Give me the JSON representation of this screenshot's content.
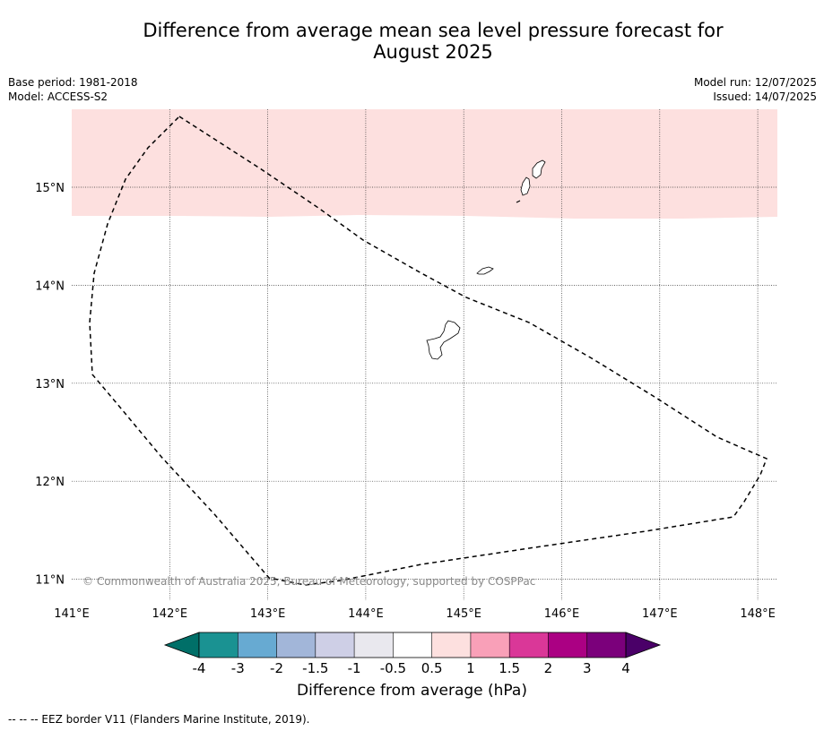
{
  "title_line1": "Difference from average mean sea level pressure forecast for",
  "title_line2": "August 2025",
  "meta_left": {
    "base_period": "Base period: 1981-2018",
    "model": "Model: ACCESS-S2"
  },
  "meta_right": {
    "model_run": "Model run: 12/07/2025",
    "issued": "Issued: 14/07/2025"
  },
  "copyright": "© Commonwealth of Australia 2025, Bureau of Meteorology, supported by COSPPac",
  "footer": "--  --  -- EEZ border V11 (Flanders Marine Institute, 2019).",
  "map": {
    "lon_ticks": [
      "141°E",
      "142°E",
      "143°E",
      "144°E",
      "145°E",
      "146°E",
      "147°E",
      "148°E"
    ],
    "lat_ticks": [
      "15°N",
      "14°N",
      "13°N",
      "12°N",
      "11°N"
    ],
    "lon_range": [
      141.0,
      148.2
    ],
    "lat_range": [
      10.75,
      15.8
    ],
    "anomaly_band": {
      "category": "0.5 to 1",
      "lat_min": 14.7,
      "color": "#fde0df"
    }
  },
  "colorbar": {
    "title": "Difference from average (hPa)",
    "tick_labels": [
      "-4",
      "-3",
      "-2",
      "-1.5",
      "-1",
      "-0.5",
      "0.5",
      "1",
      "1.5",
      "2",
      "3",
      "4"
    ],
    "colors": [
      "#1a9292",
      "#67aad2",
      "#a2b6d9",
      "#cecfe6",
      "#e9e8ee",
      "#ffffff",
      "#fde0df",
      "#f9a0b8",
      "#da3798",
      "#ab0083",
      "#7b007b"
    ],
    "under_color": "#006f68",
    "over_color": "#4a0068"
  }
}
